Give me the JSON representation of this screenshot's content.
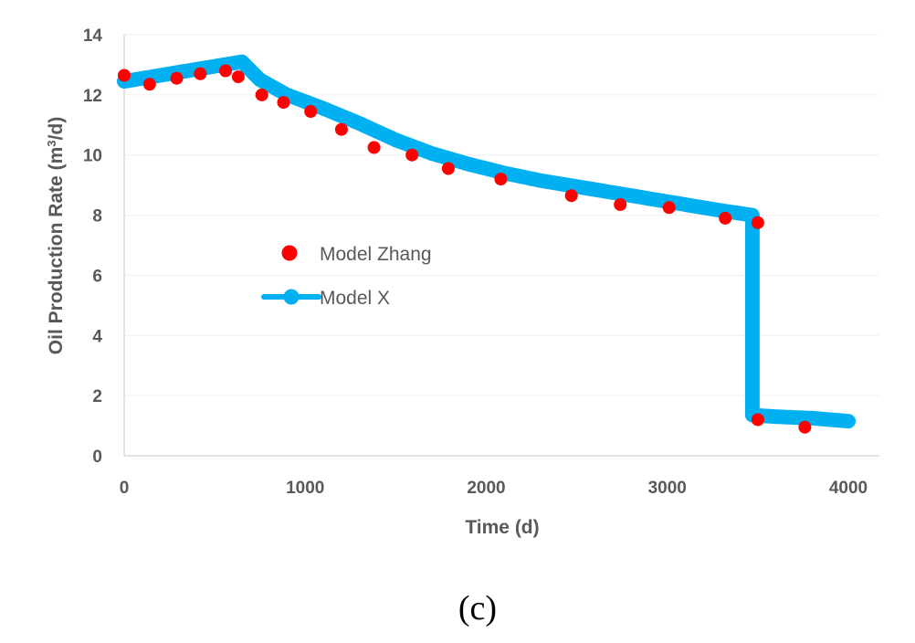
{
  "chart_data": {
    "type": "scatter+line",
    "caption": "(c)",
    "xlabel": "Time (d)",
    "ylabel": {
      "prefix": "Oil Production Rate (m",
      "sup": "3",
      "suffix": "/d)"
    },
    "xlim": [
      0,
      4000
    ],
    "ylim": [
      0,
      14
    ],
    "xticks": [
      0,
      1000,
      2000,
      3000,
      4000
    ],
    "yticks": [
      0,
      2,
      4,
      6,
      8,
      10,
      12,
      14
    ],
    "legend_position": "center-left",
    "series": [
      {
        "name": "Model Zhang",
        "kind": "scatter",
        "color": "#ff0000",
        "points": [
          [
            0,
            12.65
          ],
          [
            140,
            12.35
          ],
          [
            290,
            12.55
          ],
          [
            420,
            12.7
          ],
          [
            560,
            12.8
          ],
          [
            630,
            12.6
          ],
          [
            760,
            12.0
          ],
          [
            880,
            11.75
          ],
          [
            1030,
            11.45
          ],
          [
            1200,
            10.85
          ],
          [
            1380,
            10.25
          ],
          [
            1590,
            10.0
          ],
          [
            1790,
            9.55
          ],
          [
            2080,
            9.2
          ],
          [
            2470,
            8.65
          ],
          [
            2740,
            8.35
          ],
          [
            3010,
            8.25
          ],
          [
            3320,
            7.9
          ],
          [
            3500,
            7.75
          ],
          [
            3500,
            1.2
          ],
          [
            3760,
            0.95
          ]
        ]
      },
      {
        "name": "Model X",
        "kind": "line",
        "color": "#00b0f0",
        "points": [
          [
            0,
            12.45
          ],
          [
            650,
            13.1
          ],
          [
            750,
            12.5
          ],
          [
            900,
            12.0
          ],
          [
            1100,
            11.55
          ],
          [
            1300,
            11.05
          ],
          [
            1500,
            10.5
          ],
          [
            1700,
            10.05
          ],
          [
            1900,
            9.7
          ],
          [
            2100,
            9.4
          ],
          [
            2300,
            9.15
          ],
          [
            2500,
            8.95
          ],
          [
            2700,
            8.75
          ],
          [
            2900,
            8.55
          ],
          [
            3100,
            8.35
          ],
          [
            3300,
            8.15
          ],
          [
            3470,
            8.0
          ],
          [
            3470,
            1.35
          ],
          [
            3600,
            1.3
          ],
          [
            3800,
            1.25
          ],
          [
            4000,
            1.15
          ]
        ]
      }
    ]
  }
}
